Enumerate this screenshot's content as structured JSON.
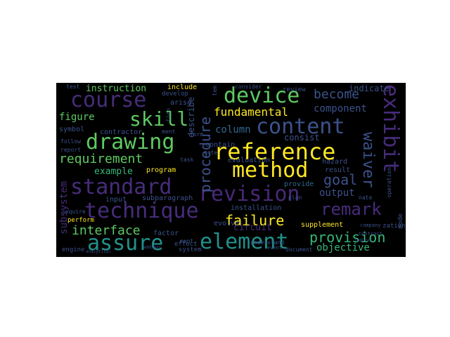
{
  "words": {
    "reference": "reference",
    "method": "method",
    "standard": "standard",
    "technique": "technique",
    "element": "element",
    "assure": "assure",
    "revision": "revision",
    "content": "content",
    "device": "device",
    "course": "course",
    "skill": "skill",
    "drawing": "drawing",
    "exhibit": "exhibit",
    "remark": "remark",
    "waiver": "waiver",
    "requirement": "requirement",
    "procedure": "procedure",
    "provision": "provision",
    "failure": "failure",
    "interface": "interface",
    "fundamental": "fundamental",
    "become": "become",
    "goal": "goal",
    "column": "column",
    "objective": "objective",
    "output": "output",
    "instruction": "instruction",
    "figure": "figure",
    "component": "component",
    "example": "example",
    "circuit": "circuit",
    "subsystem": "subsystem",
    "describe": "describe",
    "indicate": "indicate",
    "consist": "consist",
    "evaluation": "evaluation",
    "contain": "contain",
    "hazard": "hazard",
    "result": "result",
    "provide": "provide",
    "installation": "installation",
    "supplement": "supplement",
    "program": "program",
    "subparagraph": "subparagraph",
    "input": "input",
    "factor": "factor",
    "contractor": "contractor",
    "symbol": "symbol",
    "evolve": "evolve",
    "include": "include",
    "develop": "develop",
    "arise": "arise",
    "effect": "effect",
    "engine": "engine",
    "perform": "perform",
    "system": "system",
    "mode": "mode",
    "review": "review",
    "understand": "understand",
    "document": "document",
    "consider": "consider",
    "follow": "follow",
    "report": "report",
    "require": "require",
    "task": "task",
    "ment": "ment",
    "ment2": "ment",
    "note": "note",
    "tem": "tem",
    "tion": "tion",
    "form": "form",
    "nate": "nate",
    "plan": "plan",
    "zation": "zation",
    "event": "event",
    "operation": "operation",
    "test": "test",
    "contract": "contract",
    "company": "company",
    "address": "address",
    "reducer": "reducer",
    "analytical": "analytical"
  },
  "colors": {
    "background": "#000000",
    "page": "#ffffff",
    "palette": [
      "#440154",
      "#3b528b",
      "#21918c",
      "#5ec962",
      "#fde725",
      "#35b779",
      "#31688e"
    ]
  }
}
